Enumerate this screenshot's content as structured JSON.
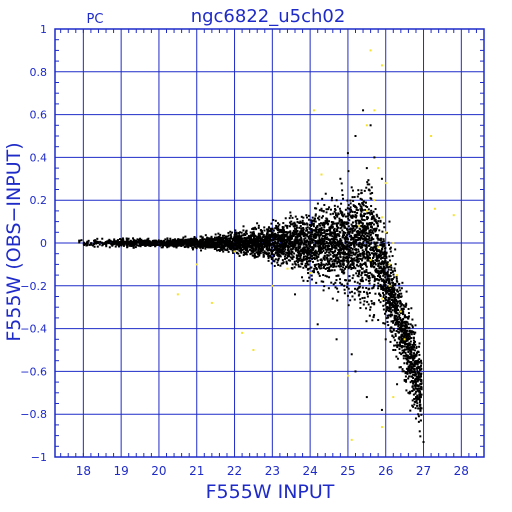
{
  "chart_data": {
    "type": "scatter",
    "title": "ngc6822_u5ch02",
    "corner_label": "PC",
    "xlabel": "F555W  INPUT",
    "ylabel": "F555W  (OBS−INPUT)",
    "xlim": [
      17.25,
      28.6
    ],
    "ylim": [
      -1,
      1
    ],
    "xticks": [
      18,
      19,
      20,
      21,
      22,
      23,
      24,
      25,
      26,
      27,
      28
    ],
    "xtick_labels": [
      "18",
      "19",
      "20",
      "21",
      "22",
      "23",
      "24",
      "25",
      "26",
      "27",
      "28"
    ],
    "yticks": [
      -1,
      -0.8,
      -0.6,
      -0.4,
      -0.2,
      0,
      0.2,
      0.4,
      0.6,
      0.8,
      1
    ],
    "ytick_labels": [
      "−1",
      "−0.8",
      "−0.6",
      "−0.4",
      "−0.2",
      "0",
      "0.2",
      "0.4",
      "0.6",
      "0.8",
      "1"
    ],
    "grid": true,
    "colors": {
      "axes": "#1f2bc8",
      "grid": "#1f2bc8",
      "black_points": "#000000",
      "yellow_points": "#f7e22b"
    },
    "series": [
      {
        "color": "#000000",
        "points": [
          [
            17.9,
            0.01
          ],
          [
            18.1,
            -0.01
          ],
          [
            18.3,
            0.0
          ],
          [
            18.5,
            0.02
          ],
          [
            18.7,
            -0.02
          ],
          [
            18.9,
            0.01
          ],
          [
            19.1,
            0.0
          ],
          [
            19.3,
            -0.01
          ],
          [
            19.5,
            0.02
          ],
          [
            19.7,
            -0.01
          ],
          [
            19.9,
            0.01
          ],
          [
            20.1,
            -0.02
          ],
          [
            20.3,
            0.02
          ],
          [
            20.5,
            0.0
          ],
          [
            20.7,
            0.03
          ],
          [
            20.9,
            -0.03
          ],
          [
            21.1,
            0.03
          ],
          [
            21.3,
            -0.02
          ],
          [
            21.5,
            0.04
          ],
          [
            21.7,
            -0.04
          ],
          [
            21.9,
            0.04
          ],
          [
            22.1,
            -0.05
          ],
          [
            22.3,
            0.05
          ],
          [
            22.5,
            -0.06
          ],
          [
            22.7,
            0.06
          ],
          [
            22.9,
            -0.07
          ],
          [
            23.1,
            0.08
          ],
          [
            23.3,
            -0.09
          ],
          [
            23.5,
            0.1
          ],
          [
            23.7,
            -0.11
          ],
          [
            23.9,
            0.13
          ],
          [
            24.1,
            -0.13
          ],
          [
            24.3,
            0.16
          ],
          [
            24.5,
            -0.16
          ],
          [
            24.7,
            0.2
          ],
          [
            24.9,
            -0.2
          ],
          [
            25.1,
            0.26
          ],
          [
            25.3,
            -0.24
          ],
          [
            25.5,
            0.35
          ],
          [
            25.6,
            -0.3
          ],
          [
            25.7,
            0.4
          ],
          [
            25.8,
            -0.36
          ],
          [
            25.9,
            0.3
          ],
          [
            26.0,
            -0.45
          ],
          [
            26.1,
            0.1
          ],
          [
            26.2,
            -0.5
          ],
          [
            26.3,
            -0.3
          ],
          [
            26.4,
            -0.58
          ],
          [
            26.5,
            -0.64
          ],
          [
            26.6,
            -0.7
          ],
          [
            26.7,
            -0.76
          ],
          [
            26.8,
            -0.82
          ],
          [
            26.9,
            -0.88
          ],
          [
            27.0,
            -0.93
          ],
          [
            25.4,
            0.62
          ],
          [
            25.2,
            0.5
          ],
          [
            25.6,
            0.55
          ],
          [
            25.0,
            0.42
          ],
          [
            24.8,
            0.3
          ],
          [
            24.2,
            -0.38
          ],
          [
            24.6,
            -0.26
          ],
          [
            25.2,
            -0.6
          ],
          [
            25.5,
            -0.72
          ],
          [
            25.9,
            -0.78
          ],
          [
            26.3,
            -0.66
          ],
          [
            24.7,
            -0.45
          ],
          [
            25.1,
            -0.52
          ],
          [
            23.6,
            -0.24
          ],
          [
            26.6,
            -0.55
          ],
          [
            26.8,
            -0.72
          ]
        ]
      },
      {
        "color": "#f7e22b",
        "points": [
          [
            25.9,
            0.12
          ],
          [
            26.0,
            0.05
          ],
          [
            25.8,
            -0.02
          ],
          [
            26.1,
            -0.1
          ],
          [
            25.7,
            0.2
          ],
          [
            26.2,
            0.0
          ],
          [
            25.6,
            -0.08
          ],
          [
            26.0,
            0.28
          ],
          [
            25.5,
            0.15
          ],
          [
            26.1,
            -0.2
          ],
          [
            25.9,
            -0.26
          ],
          [
            26.3,
            -0.15
          ],
          [
            26.4,
            -0.32
          ],
          [
            26.5,
            -0.45
          ],
          [
            25.3,
            0.08
          ],
          [
            25.8,
            0.35
          ],
          [
            25.5,
            0.55
          ],
          [
            25.7,
            0.62
          ],
          [
            25.9,
            0.83
          ],
          [
            25.6,
            0.9
          ],
          [
            27.3,
            0.16
          ],
          [
            27.8,
            0.13
          ],
          [
            27.2,
            0.5
          ],
          [
            22.5,
            -0.5
          ],
          [
            21.4,
            -0.28
          ],
          [
            22.2,
            -0.42
          ],
          [
            24.3,
            0.32
          ],
          [
            24.1,
            0.62
          ],
          [
            20.5,
            -0.24
          ],
          [
            23.4,
            -0.12
          ],
          [
            24.0,
            -0.14
          ],
          [
            23.0,
            -0.2
          ],
          [
            21.0,
            -0.1
          ],
          [
            25.1,
            -0.92
          ],
          [
            25.0,
            -0.62
          ],
          [
            26.2,
            -0.72
          ],
          [
            22.0,
            -0.04
          ],
          [
            25.9,
            -0.86
          ]
        ]
      }
    ]
  }
}
